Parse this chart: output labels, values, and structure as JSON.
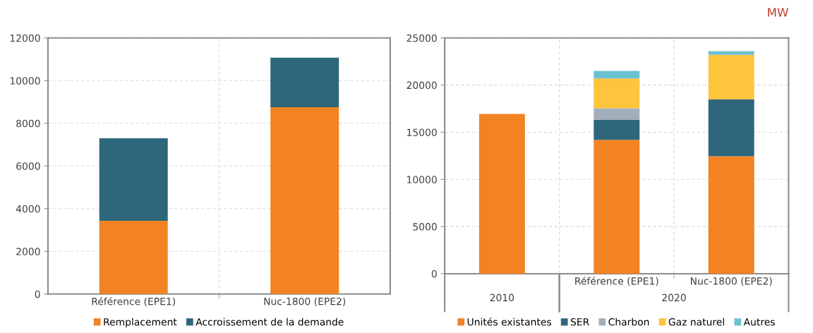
{
  "chart_data": [
    {
      "type": "bar",
      "stacked": true,
      "categories": [
        "Référence (EPE1)",
        "Nuc-1800 (EPE2)"
      ],
      "series": [
        {
          "name": "Remplacement",
          "color": "#f28222",
          "values": [
            3430,
            8750
          ]
        },
        {
          "name": "Accroissement de la demande",
          "color": "#2e677c",
          "values": [
            3870,
            2330
          ]
        }
      ],
      "ylim": [
        0,
        12000
      ],
      "yticks": [
        0,
        2000,
        4000,
        6000,
        8000,
        10000,
        12000
      ],
      "grid": true,
      "legend": "bottom"
    },
    {
      "type": "bar",
      "stacked": true,
      "categories": [
        null,
        "Référence (EPE1)",
        "Nuc-1800 (EPE2)"
      ],
      "ylabel": "MW",
      "annotations": [
        "2010",
        "2020"
      ],
      "series": [
        {
          "name": "Unités existantes",
          "color": "#f28222",
          "values": [
            16950,
            14200,
            12450
          ]
        },
        {
          "name": "SER",
          "color": "#2e677c",
          "values": [
            0,
            2100,
            6050
          ]
        },
        {
          "name": "Charbon",
          "color": "#a3aebb",
          "values": [
            0,
            1250,
            0
          ]
        },
        {
          "name": "Gaz naturel",
          "color": "#fdc43c",
          "values": [
            0,
            3150,
            4700
          ]
        },
        {
          "name": "Autres",
          "color": "#6cc1d1",
          "values": [
            0,
            800,
            400
          ]
        }
      ],
      "ylim": [
        0,
        25000
      ],
      "yticks": [
        0,
        5000,
        10000,
        15000,
        20000,
        25000
      ],
      "grid": true,
      "legend": "bottom"
    }
  ]
}
